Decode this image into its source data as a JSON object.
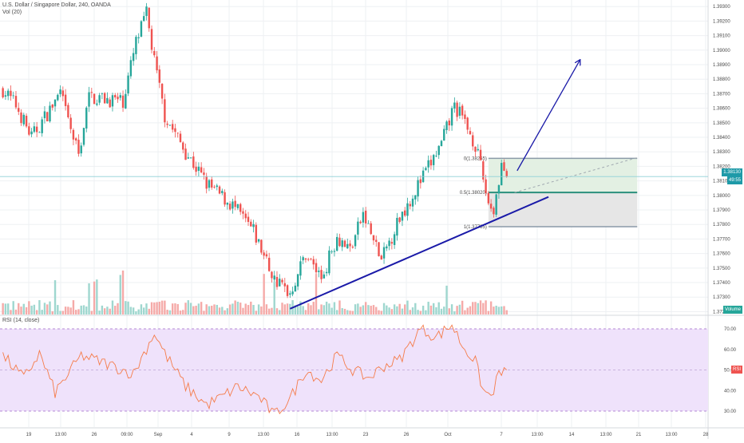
{
  "header": {
    "symbol_title": "U.S. Dollar / Singapore Dollar, 240, OANDA",
    "volume_indicator": "Vol (20)",
    "rsi_indicator": "RSI (14, close)"
  },
  "price_tag": {
    "value": "1.38130",
    "countdown": "49:55"
  },
  "volume_tag": "Volume",
  "rsi_tag": "RSI",
  "colors": {
    "up": "#26a69a",
    "down": "#ef5350",
    "trendline": "#1a1aa8",
    "rsi_line": "#f57c4a",
    "rsi_band": "#efe2fb",
    "price_tag_bg": "#1e9aa8",
    "grid": "#eef0f3"
  },
  "fib_labels": [
    "0(1.38255)",
    "0.5(1.38020)",
    "1(1.37785)"
  ],
  "chart_data": [
    {
      "type": "candlestick",
      "title": "U.S. Dollar / Singapore Dollar, 240, OANDA",
      "y_ticks": [
        1.372,
        1.373,
        1.374,
        1.375,
        1.376,
        1.377,
        1.378,
        1.379,
        1.38,
        1.381,
        1.382,
        1.383,
        1.384,
        1.385,
        1.386,
        1.387,
        1.388,
        1.389,
        1.39,
        1.391,
        1.392,
        1.393
      ],
      "ylim": [
        1.37175,
        1.39345
      ],
      "x_tick_labels": [
        "19",
        "13:00",
        "26",
        "09:00",
        "Sep",
        "4",
        "9",
        "13:00",
        "16",
        "13:00",
        "23",
        "26",
        "Oct",
        "7",
        "13:00",
        "14",
        "13:00",
        "21",
        "13:00",
        "28"
      ],
      "last_price": 1.3813,
      "price_path_anchors": [
        {
          "bar": 0,
          "price": 1.3873
        },
        {
          "bar": 5,
          "price": 1.3862
        },
        {
          "bar": 11,
          "price": 1.384
        },
        {
          "bar": 22,
          "price": 1.387
        },
        {
          "bar": 26,
          "price": 1.3845
        },
        {
          "bar": 29,
          "price": 1.3828
        },
        {
          "bar": 33,
          "price": 1.3868
        },
        {
          "bar": 46,
          "price": 1.3865
        },
        {
          "bar": 51,
          "price": 1.3905
        },
        {
          "bar": 55,
          "price": 1.3925
        },
        {
          "bar": 58,
          "price": 1.3892
        },
        {
          "bar": 62,
          "price": 1.3855
        },
        {
          "bar": 70,
          "price": 1.383
        },
        {
          "bar": 78,
          "price": 1.3808
        },
        {
          "bar": 88,
          "price": 1.3793
        },
        {
          "bar": 96,
          "price": 1.3775
        },
        {
          "bar": 104,
          "price": 1.3742
        },
        {
          "bar": 110,
          "price": 1.3733
        },
        {
          "bar": 116,
          "price": 1.376
        },
        {
          "bar": 122,
          "price": 1.3743
        },
        {
          "bar": 128,
          "price": 1.3772
        },
        {
          "bar": 133,
          "price": 1.3763
        },
        {
          "bar": 138,
          "price": 1.3787
        },
        {
          "bar": 145,
          "price": 1.3755
        },
        {
          "bar": 152,
          "price": 1.3785
        },
        {
          "bar": 160,
          "price": 1.381
        },
        {
          "bar": 168,
          "price": 1.3835
        },
        {
          "bar": 173,
          "price": 1.3862
        },
        {
          "bar": 177,
          "price": 1.385
        },
        {
          "bar": 181,
          "price": 1.3835
        },
        {
          "bar": 186,
          "price": 1.3795
        },
        {
          "bar": 188,
          "price": 1.379
        },
        {
          "bar": 191,
          "price": 1.3822
        },
        {
          "bar": 193,
          "price": 1.3813
        }
      ],
      "trendline": {
        "from": {
          "bar": 110,
          "price": 1.3722
        },
        "to": {
          "bar": 209,
          "price": 1.3799
        }
      },
      "projection_arrow": {
        "from": {
          "bar": 197,
          "price": 1.3817
        },
        "to": {
          "bar": 221,
          "price": 1.3893
        }
      },
      "dashed_extension": {
        "from": {
          "bar": 196,
          "price": 1.3802
        },
        "to": {
          "bar": 243,
          "price": 1.3826
        }
      },
      "position_box": {
        "start_bar": 186,
        "end_bar": 243,
        "entry": 1.3802,
        "target": 1.38255,
        "stop": 1.37785
      }
    },
    {
      "type": "bar",
      "title": "Vol (20)",
      "values_note": "volume histogram colored by candle direction"
    },
    {
      "type": "line",
      "title": "RSI (14, close)",
      "y_ticks": [
        30,
        40,
        50,
        60,
        70
      ],
      "ylim": [
        25,
        75
      ],
      "band": [
        30,
        70
      ],
      "last_value": 50,
      "anchors": [
        {
          "bar": 0,
          "value": 57
        },
        {
          "bar": 8,
          "value": 46
        },
        {
          "bar": 14,
          "value": 58
        },
        {
          "bar": 20,
          "value": 39
        },
        {
          "bar": 30,
          "value": 57
        },
        {
          "bar": 40,
          "value": 53
        },
        {
          "bar": 50,
          "value": 48
        },
        {
          "bar": 58,
          "value": 68
        },
        {
          "bar": 62,
          "value": 58
        },
        {
          "bar": 70,
          "value": 42
        },
        {
          "bar": 78,
          "value": 33
        },
        {
          "bar": 84,
          "value": 37
        },
        {
          "bar": 90,
          "value": 42
        },
        {
          "bar": 98,
          "value": 37
        },
        {
          "bar": 104,
          "value": 28
        },
        {
          "bar": 110,
          "value": 36
        },
        {
          "bar": 116,
          "value": 50
        },
        {
          "bar": 122,
          "value": 45
        },
        {
          "bar": 128,
          "value": 57
        },
        {
          "bar": 134,
          "value": 50
        },
        {
          "bar": 140,
          "value": 46
        },
        {
          "bar": 146,
          "value": 52
        },
        {
          "bar": 152,
          "value": 55
        },
        {
          "bar": 160,
          "value": 70
        },
        {
          "bar": 166,
          "value": 66
        },
        {
          "bar": 172,
          "value": 72
        },
        {
          "bar": 176,
          "value": 62
        },
        {
          "bar": 181,
          "value": 54
        },
        {
          "bar": 184,
          "value": 40
        },
        {
          "bar": 187,
          "value": 37
        },
        {
          "bar": 190,
          "value": 48
        },
        {
          "bar": 193,
          "value": 50
        }
      ]
    }
  ]
}
